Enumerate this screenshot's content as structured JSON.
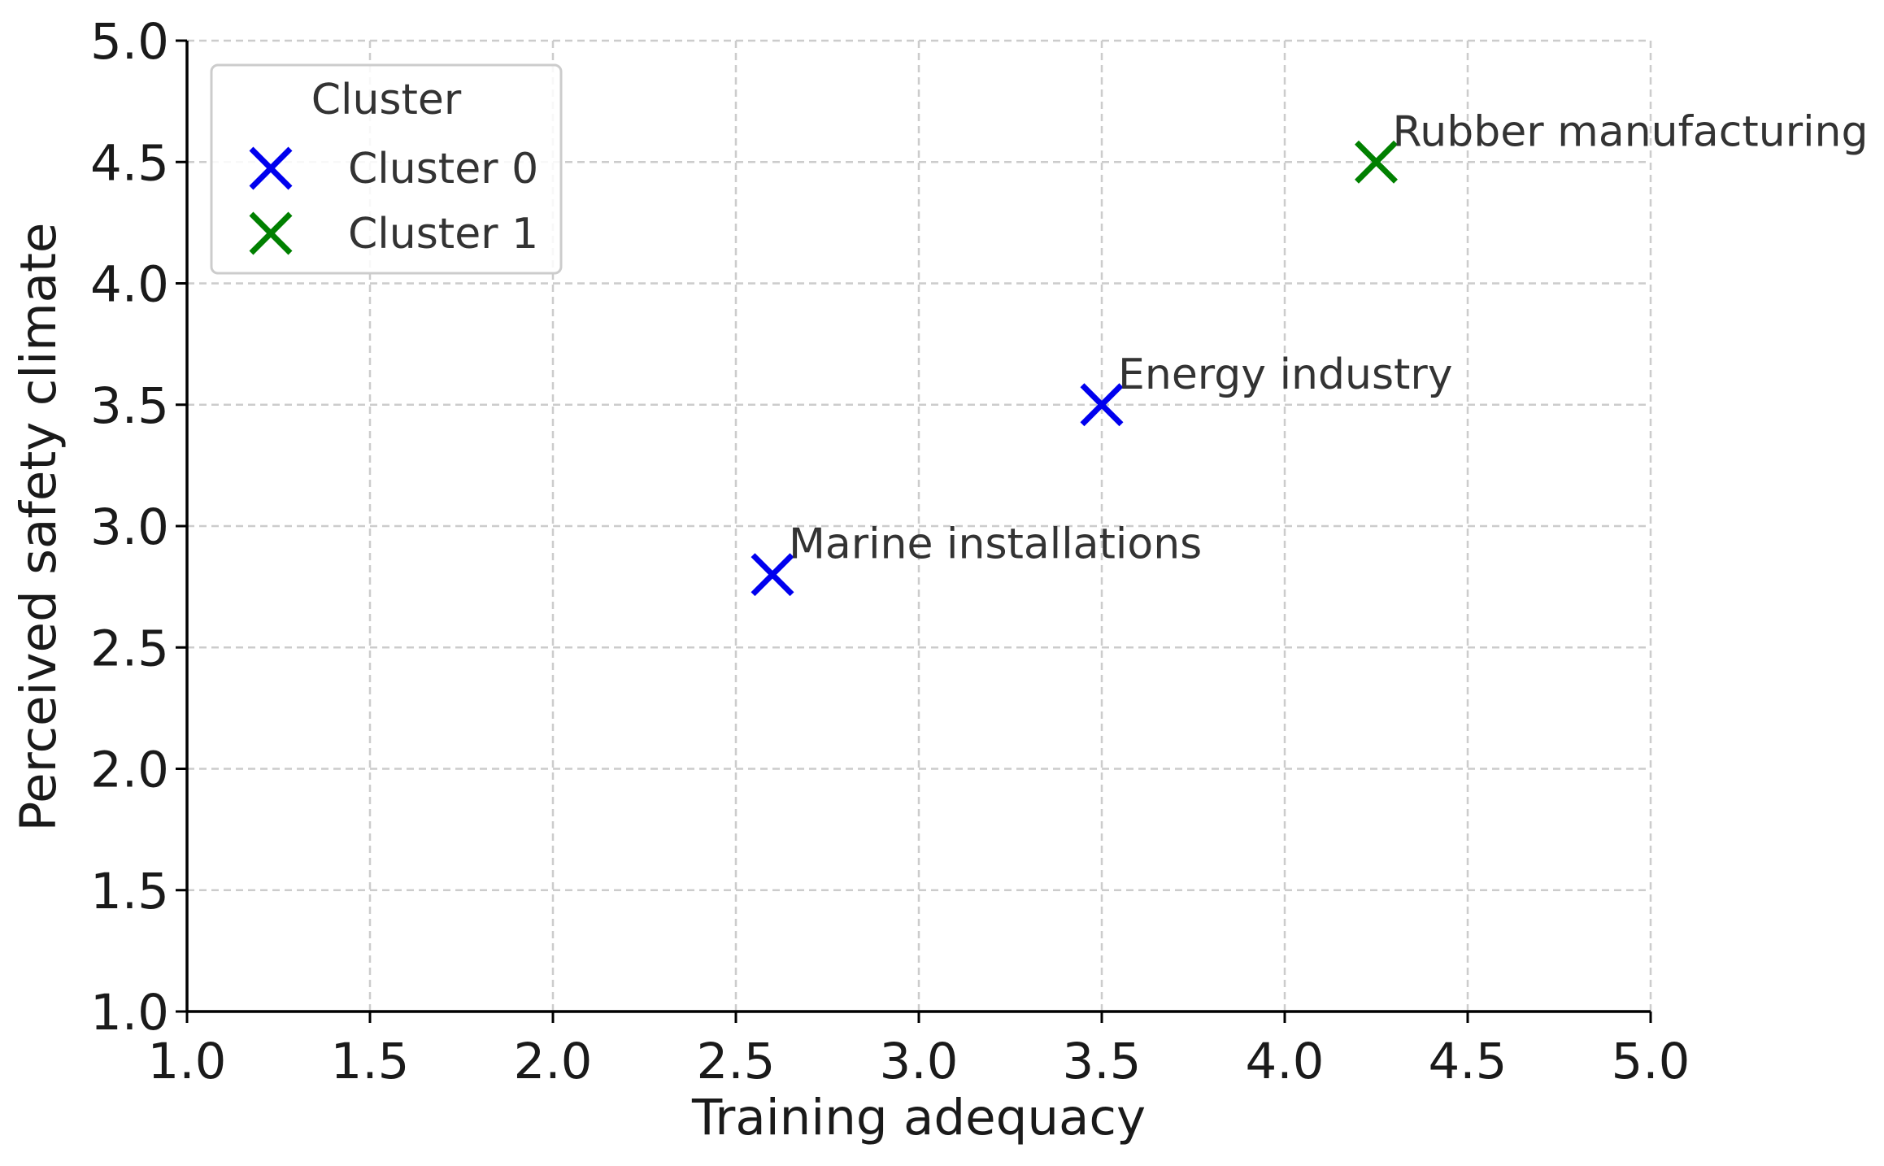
{
  "chart_data": {
    "type": "scatter",
    "xlabel": "Training adequacy",
    "ylabel": "Perceived safety climate",
    "xlim": [
      1.0,
      5.0
    ],
    "ylim": [
      1.0,
      5.0
    ],
    "xticks": [
      "1.0",
      "1.5",
      "2.0",
      "2.5",
      "3.0",
      "3.5",
      "4.0",
      "4.5",
      "5.0"
    ],
    "yticks": [
      "1.0",
      "1.5",
      "2.0",
      "2.5",
      "3.0",
      "3.5",
      "4.0",
      "4.5",
      "5.0"
    ],
    "grid": true,
    "marker": "x",
    "legend": {
      "title": "Cluster",
      "placement": "upper-left"
    },
    "series": [
      {
        "name": "Cluster 0",
        "color": "#0000ee",
        "points": [
          {
            "x": 2.6,
            "y": 2.8,
            "label": "Marine installations"
          },
          {
            "x": 3.5,
            "y": 3.5,
            "label": "Energy industry"
          }
        ]
      },
      {
        "name": "Cluster 1",
        "color": "#008000",
        "points": [
          {
            "x": 4.25,
            "y": 4.5,
            "label": "Rubber manufacturing"
          }
        ]
      }
    ]
  }
}
